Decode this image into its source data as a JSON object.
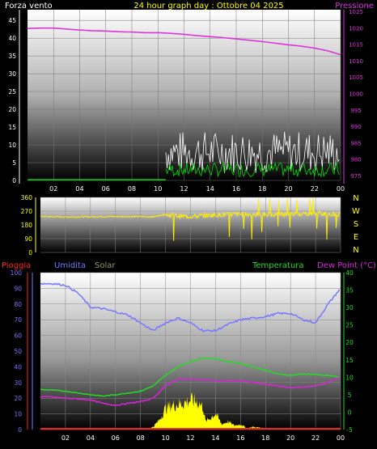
{
  "header": {
    "left_label": "Forza vento",
    "title": "24 hour graph day : Ottobre 04 2025",
    "right_label": "Pressione"
  },
  "labels": {
    "rain": "Pioggia",
    "humidity": "Umidita",
    "solar": "Solar",
    "temperature": "Temperatura",
    "dew_point": "Dew Point (°C)"
  },
  "colors": {
    "wind_axis": "#ffffff",
    "pressure": "#dd33dd",
    "wind_gust": "#ffffff",
    "wind_avg": "#00dd00",
    "direction": "#ffee00",
    "rain": "#ff2222",
    "humidity": "#7777ff",
    "solar": "#ffff00",
    "temperature": "#22dd22",
    "dew_point": "#dd22dd",
    "title": "#ffff00",
    "temp_axis": "#22dd22"
  },
  "chart_data": [
    {
      "type": "line",
      "name": "wind-pressure",
      "x_ticks": [
        "02",
        "04",
        "06",
        "08",
        "10",
        "12",
        "14",
        "16",
        "18",
        "20",
        "22",
        "00"
      ],
      "y_left_ticks": [
        0,
        5,
        10,
        15,
        20,
        25,
        30,
        35,
        40,
        45
      ],
      "ylim_left": [
        0,
        48
      ],
      "y_right_ticks": [
        975,
        980,
        985,
        990,
        995,
        1000,
        1005,
        1010,
        1015,
        1020,
        1025
      ],
      "ylim_right": [
        973.5,
        1025.5
      ],
      "pressure": {
        "x": [
          0,
          1,
          2,
          3,
          4,
          5,
          6,
          7,
          8,
          9,
          10,
          11,
          12,
          13,
          14,
          15,
          16,
          17,
          18,
          19,
          20,
          21,
          22,
          23,
          24
        ],
        "values": [
          1019.8,
          1019.9,
          1019.9,
          1019.6,
          1019.3,
          1019.1,
          1019.0,
          1018.8,
          1018.7,
          1018.5,
          1018.5,
          1018.3,
          1018.0,
          1017.6,
          1017.3,
          1017.0,
          1016.6,
          1016.2,
          1015.8,
          1015.3,
          1014.8,
          1014.4,
          1013.8,
          1013.0,
          1011.8
        ]
      },
      "wind_gust_start_hour": 10.6,
      "wind_gust_range": [
        2,
        14
      ],
      "wind_avg_range": [
        1,
        5
      ]
    },
    {
      "type": "line",
      "name": "wind-direction",
      "y_ticks": [
        0,
        90,
        180,
        270,
        360
      ],
      "ylim": [
        0,
        360
      ],
      "compass": [
        "N",
        "W",
        "S",
        "E",
        "N"
      ],
      "direction": {
        "x": [
          0,
          2,
          4,
          6,
          8,
          9,
          10,
          11,
          12,
          14,
          16,
          18,
          20,
          22,
          24
        ],
        "values": [
          235,
          232,
          233,
          235,
          234,
          232,
          250,
          238,
          235,
          245,
          250,
          248,
          252,
          255,
          250
        ]
      }
    },
    {
      "type": "line",
      "name": "climate",
      "y_left_ticks": [
        0,
        10,
        20,
        30,
        40,
        50,
        60,
        70,
        80,
        90,
        100
      ],
      "ylim_left": [
        0,
        100
      ],
      "y_right_ticks": [
        -5,
        0,
        5,
        10,
        15,
        20,
        25,
        30,
        35,
        40
      ],
      "ylim_right": [
        -5,
        40
      ],
      "humidity": {
        "x": [
          0,
          1,
          2,
          3,
          4,
          5,
          6,
          7,
          8,
          9,
          10,
          11,
          12,
          13,
          14,
          15,
          16,
          17,
          18,
          19,
          20,
          21,
          22,
          23,
          24
        ],
        "values": [
          93,
          93,
          92,
          87,
          78,
          77,
          75,
          73,
          68,
          63,
          68,
          71,
          68,
          63,
          63,
          67,
          70,
          71,
          72,
          74,
          74,
          70,
          68,
          80,
          90
        ]
      },
      "temperature": {
        "x": [
          0,
          1,
          2,
          3,
          4,
          5,
          6,
          7,
          8,
          9,
          10,
          11,
          12,
          13,
          14,
          15,
          16,
          17,
          18,
          19,
          20,
          21,
          22,
          23,
          24
        ],
        "values": [
          6.5,
          6.3,
          6.0,
          5.5,
          5.0,
          4.6,
          5.0,
          5.5,
          6.0,
          7.5,
          10.5,
          13.0,
          14.5,
          15.5,
          15.3,
          14.5,
          14.0,
          13.0,
          12.0,
          11.0,
          10.5,
          11.0,
          10.8,
          10.5,
          10.0
        ]
      },
      "dew_point": {
        "x": [
          0,
          1,
          2,
          3,
          4,
          5,
          6,
          7,
          8,
          9,
          10,
          11,
          12,
          13,
          14,
          15,
          16,
          17,
          18,
          19,
          20,
          21,
          22,
          23,
          24
        ],
        "values": [
          4.5,
          4.3,
          4.0,
          3.8,
          3.5,
          2.5,
          2.0,
          2.5,
          3.0,
          4.0,
          7.5,
          9.5,
          9.5,
          9.3,
          9.0,
          9.0,
          9.0,
          8.5,
          8.0,
          7.5,
          7.0,
          7.2,
          7.5,
          8.5,
          10.0
        ]
      },
      "solar": {
        "x": [
          0,
          7.5,
          8.5,
          9.0,
          9.5,
          10.0,
          10.5,
          11.0,
          11.5,
          12.0,
          12.5,
          13.0,
          13.2,
          13.5,
          14.0,
          14.5,
          15.0,
          15.5,
          16.0,
          16.5,
          17.0,
          18.0,
          19.0,
          24
        ],
        "values": [
          0,
          0,
          0.5,
          2,
          7,
          16,
          18,
          19,
          20,
          22,
          21,
          17,
          6,
          8,
          12,
          4,
          6,
          3,
          4,
          1,
          2,
          1,
          0,
          0
        ]
      },
      "rain": {
        "x": [
          0,
          24
        ],
        "values": [
          0,
          0
        ]
      }
    }
  ]
}
